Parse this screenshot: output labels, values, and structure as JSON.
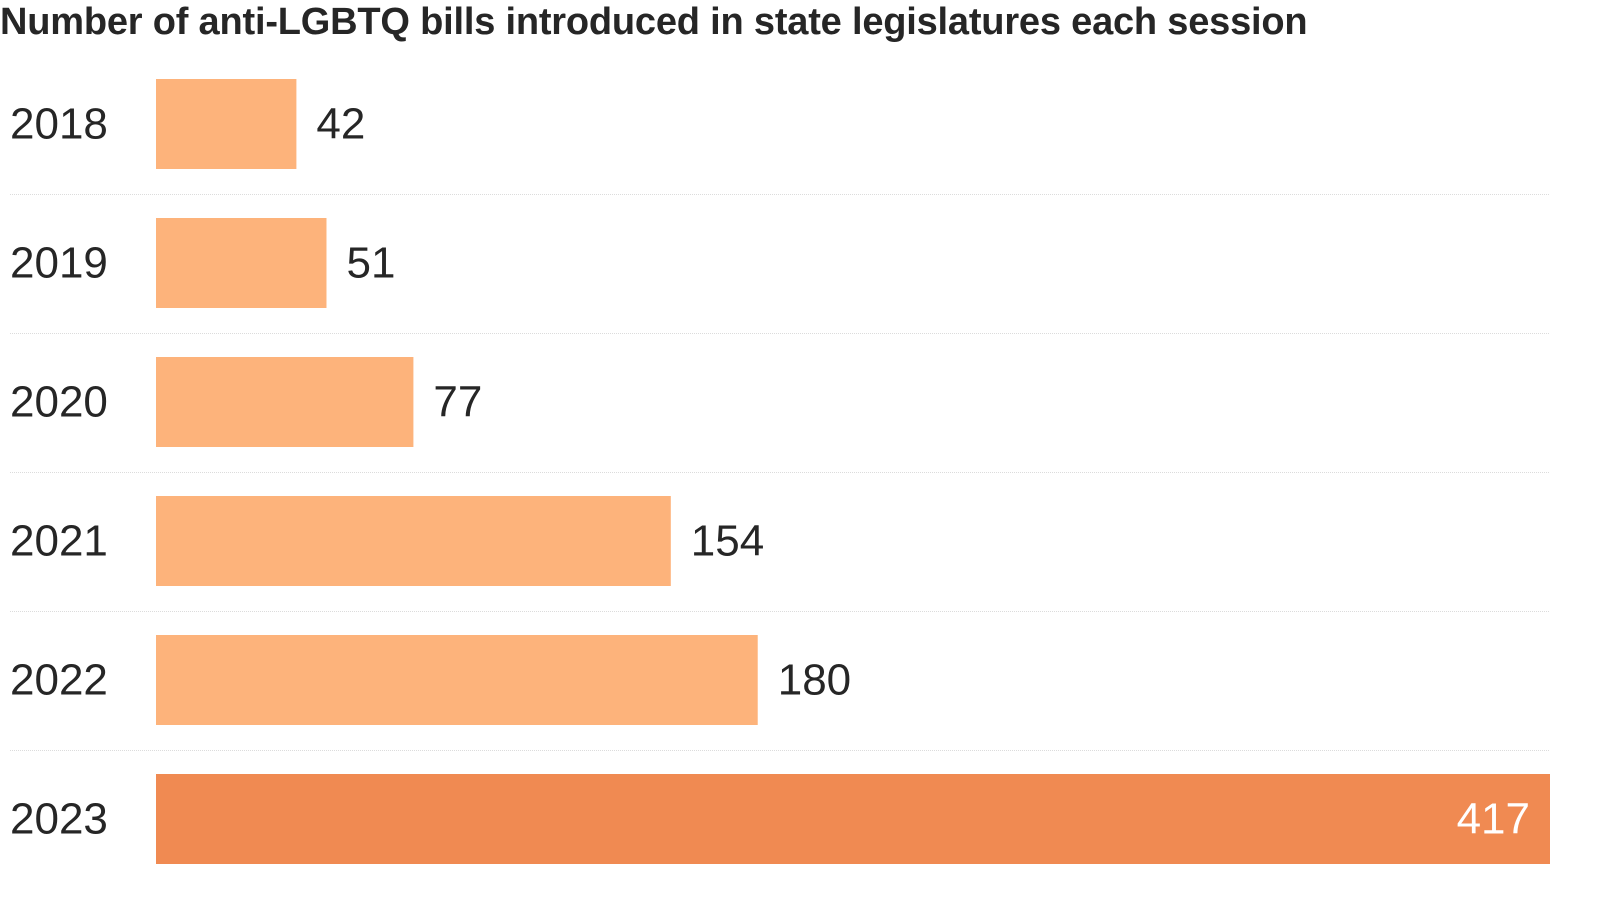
{
  "chart_data": {
    "type": "bar",
    "orientation": "horizontal",
    "title": "Number of anti-LGBTQ bills introduced in state legislatures each session",
    "categories": [
      "2018",
      "2019",
      "2020",
      "2021",
      "2022",
      "2023"
    ],
    "values": [
      42,
      51,
      77,
      154,
      180,
      417
    ],
    "value_labels": [
      "42",
      "51",
      "77",
      "154",
      "180",
      "417"
    ],
    "highlight": "2023",
    "xlim": [
      0,
      417
    ],
    "grid": false,
    "colors": {
      "bar": "#fdb37b",
      "highlight_bar": "#f08a52",
      "text": "#262626",
      "highlight_label": "#ffffff"
    }
  }
}
